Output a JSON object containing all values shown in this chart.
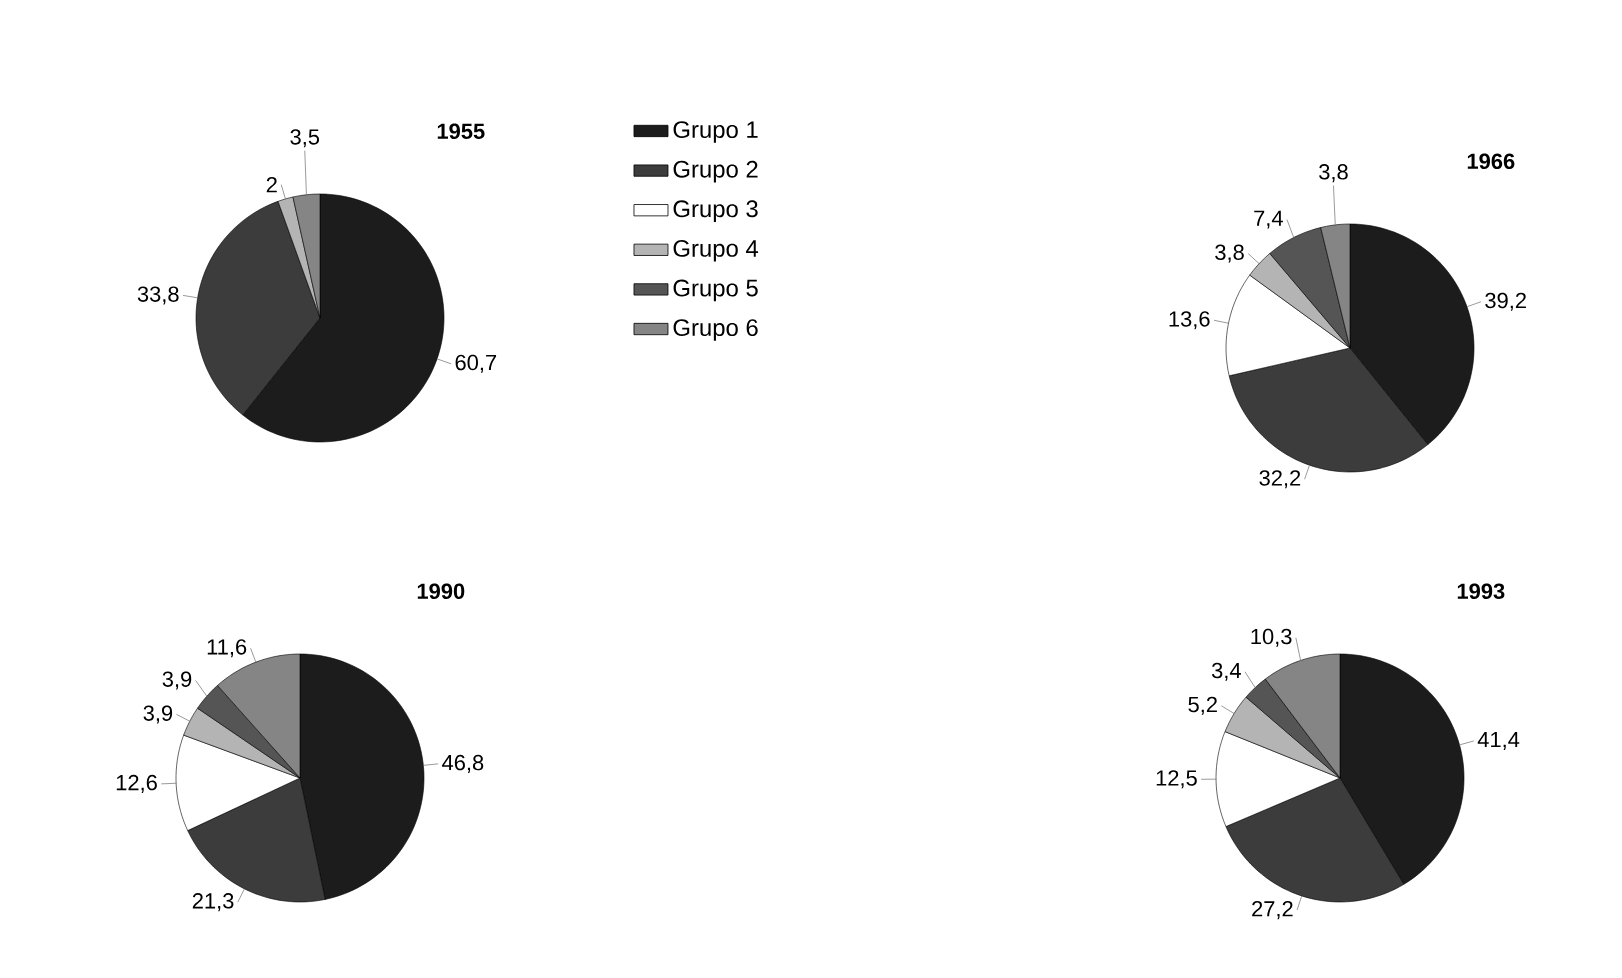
{
  "chart_data": [
    {
      "type": "pie",
      "title": "1955",
      "categories": [
        "Grupo 1",
        "Grupo 2",
        "Grupo 3",
        "Grupo 4",
        "Grupo 5",
        "Grupo 6"
      ],
      "values": [
        60.7,
        33.8,
        null,
        2,
        null,
        3.5
      ],
      "value_labels": [
        "60,7",
        "33,8",
        null,
        "2",
        null,
        "3,5"
      ],
      "colors": [
        "#1c1c1c",
        "#3c3c3c",
        "#ffffff",
        "#b4b4b4",
        "#555555",
        "#858585"
      ],
      "legend": "right"
    },
    {
      "type": "pie",
      "title": "1966",
      "categories": [
        null,
        null,
        null,
        null,
        null,
        null
      ],
      "values": [
        39.2,
        32.2,
        13.6,
        3.8,
        7.4,
        3.8
      ],
      "value_labels": [
        "39,2",
        "32,2",
        "13,6",
        "3,8",
        "7,4",
        "3,8"
      ],
      "colors": [
        "#1c1c1c",
        "#3c3c3c",
        "#ffffff",
        "#b4b4b4",
        "#555555",
        "#858585"
      ]
    },
    {
      "type": "pie",
      "title": "1990",
      "categories": [
        null,
        null,
        null,
        null,
        null,
        null
      ],
      "values": [
        46.8,
        21.3,
        12.6,
        3.9,
        3.9,
        11.6
      ],
      "value_labels": [
        "46,8",
        "21,3",
        "12,6",
        "3,9",
        "3,9",
        "11,6"
      ],
      "colors": [
        "#1c1c1c",
        "#3c3c3c",
        "#ffffff",
        "#b4b4b4",
        "#555555",
        "#858585"
      ]
    },
    {
      "type": "pie",
      "title": "1993",
      "categories": [
        null,
        null,
        null,
        null,
        null,
        null
      ],
      "values": [
        41.4,
        27.2,
        12.5,
        5.2,
        3.4,
        10.3
      ],
      "value_labels": [
        "41,4",
        "27,2",
        "12,5",
        "5,2",
        "3,4",
        "10,3"
      ],
      "colors": [
        "#1c1c1c",
        "#3c3c3c",
        "#ffffff",
        "#b4b4b4",
        "#555555",
        "#858585"
      ]
    }
  ]
}
